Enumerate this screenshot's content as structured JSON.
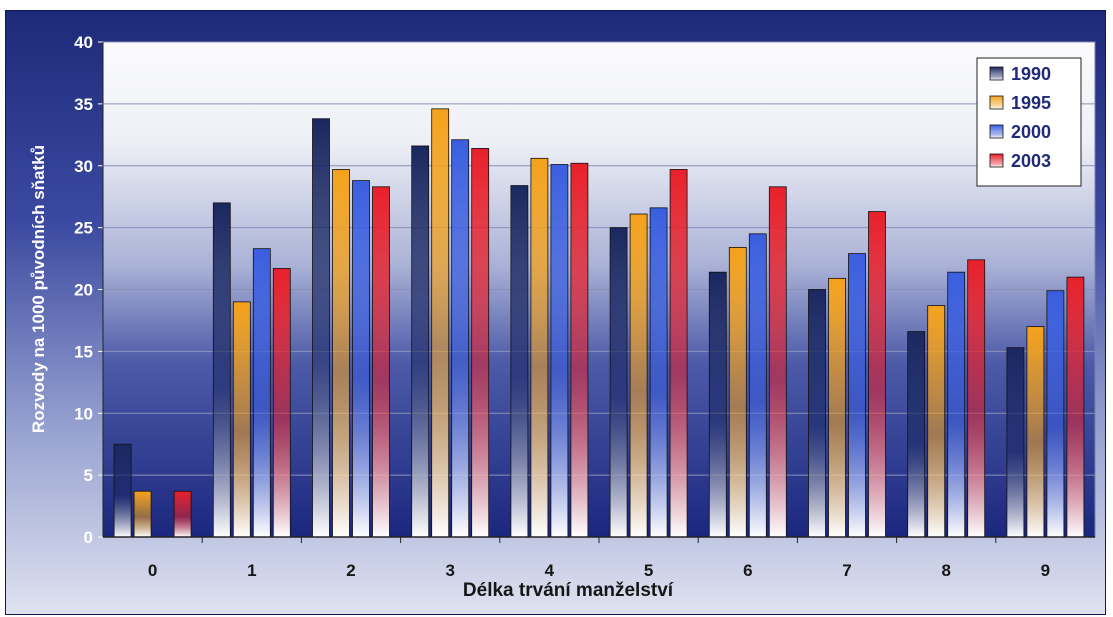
{
  "chart_data": {
    "type": "bar",
    "title": "",
    "xlabel": "Délka trvání manželství",
    "ylabel": "Rozvody na 1000 původních sňatků",
    "categories": [
      "0",
      "1",
      "2",
      "3",
      "4",
      "5",
      "6",
      "7",
      "8",
      "9"
    ],
    "ylim": [
      0,
      40
    ],
    "yticks": [
      0,
      5,
      10,
      15,
      20,
      25,
      30,
      35,
      40
    ],
    "grid": true,
    "legend_position": "top-right",
    "series": [
      {
        "name": "1990",
        "color": "#1a2760",
        "values": [
          7.5,
          27.0,
          33.8,
          31.6,
          28.4,
          25.0,
          21.4,
          20.0,
          16.6,
          15.3
        ]
      },
      {
        "name": "1995",
        "color": "#f4a21c",
        "values": [
          3.7,
          19.0,
          29.7,
          34.6,
          30.6,
          26.1,
          23.4,
          20.9,
          18.7,
          17.0
        ]
      },
      {
        "name": "2000",
        "color": "#3a5ee0",
        "values": [
          0,
          23.3,
          28.8,
          32.1,
          30.1,
          26.6,
          24.5,
          22.9,
          21.4,
          19.9
        ]
      },
      {
        "name": "2003",
        "color": "#e8202a",
        "values": [
          3.7,
          21.7,
          28.3,
          31.4,
          30.2,
          29.7,
          28.3,
          26.3,
          22.4,
          21.0
        ]
      }
    ]
  }
}
